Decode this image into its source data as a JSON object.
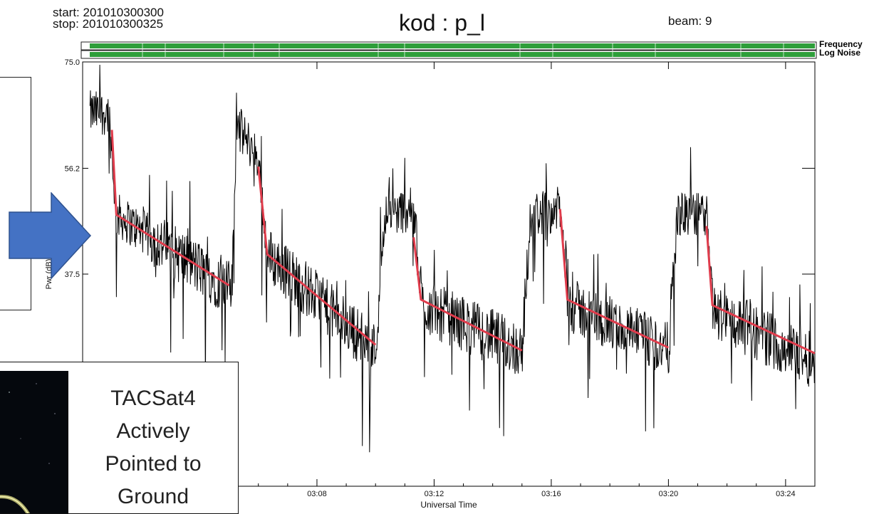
{
  "header": {
    "start": "start: 201010300300",
    "stop": "stop: 201010300325",
    "title": "kod : p_l",
    "beam": "beam: 9"
  },
  "status_bars": {
    "frequency_label": "Frequency",
    "noise_label": "Log Noise",
    "color": "#2e9e3a"
  },
  "inset": {
    "lines": [
      "TACSat4",
      "Actively",
      "Pointed to",
      "Ground"
    ]
  },
  "colors": {
    "signal": "#000000",
    "trend": "#e03c4c",
    "arrow": "#4472c4",
    "arrow_stroke": "#2f528f"
  },
  "chart_data": {
    "type": "line",
    "xlabel": "Universal Time",
    "ylabel": "Pwr (dB)",
    "x_unit": "minutes after 03:00 UT",
    "xlim": [
      0,
      25
    ],
    "ylim": [
      0,
      75
    ],
    "y_ticks": [
      37.5,
      56.2,
      75.0
    ],
    "y_tick_labels": [
      "37.5",
      "56.2",
      "75.0"
    ],
    "x_ticks": [
      8,
      12,
      16,
      20,
      24
    ],
    "x_tick_labels": [
      "03:08",
      "03:12",
      "03:16",
      "03:20",
      "03:24"
    ],
    "signal_envelope": [
      {
        "t": 0.25,
        "level": 66
      },
      {
        "t": 0.9,
        "level": 66
      },
      {
        "t": 1.15,
        "level": 48
      },
      {
        "t": 5.0,
        "level": 35
      },
      {
        "t": 5.1,
        "level": 35
      },
      {
        "t": 5.25,
        "level": 64
      },
      {
        "t": 6.0,
        "level": 58
      },
      {
        "t": 6.3,
        "level": 41
      },
      {
        "t": 10.0,
        "level": 24
      },
      {
        "t": 10.3,
        "level": 48
      },
      {
        "t": 11.3,
        "level": 49
      },
      {
        "t": 11.6,
        "level": 32
      },
      {
        "t": 15.0,
        "level": 24
      },
      {
        "t": 15.3,
        "level": 48
      },
      {
        "t": 16.3,
        "level": 49
      },
      {
        "t": 16.6,
        "level": 32
      },
      {
        "t": 20.0,
        "level": 24
      },
      {
        "t": 20.3,
        "level": 48
      },
      {
        "t": 21.3,
        "level": 48
      },
      {
        "t": 21.5,
        "level": 31
      },
      {
        "t": 25.0,
        "level": 22
      }
    ],
    "trend_segments": [
      [
        [
          1.0,
          63.0
        ],
        [
          1.15,
          48.0
        ],
        [
          5.0,
          35.5
        ]
      ],
      [
        [
          6.0,
          56.5
        ],
        [
          6.3,
          41.0
        ],
        [
          10.0,
          25.0
        ]
      ],
      [
        [
          11.3,
          44.0
        ],
        [
          11.55,
          33.0
        ],
        [
          15.0,
          24.0
        ]
      ],
      [
        [
          16.3,
          49.0
        ],
        [
          16.55,
          33.0
        ],
        [
          20.0,
          24.5
        ]
      ],
      [
        [
          21.3,
          46.0
        ],
        [
          21.5,
          32.0
        ],
        [
          25.0,
          23.5
        ]
      ]
    ]
  }
}
